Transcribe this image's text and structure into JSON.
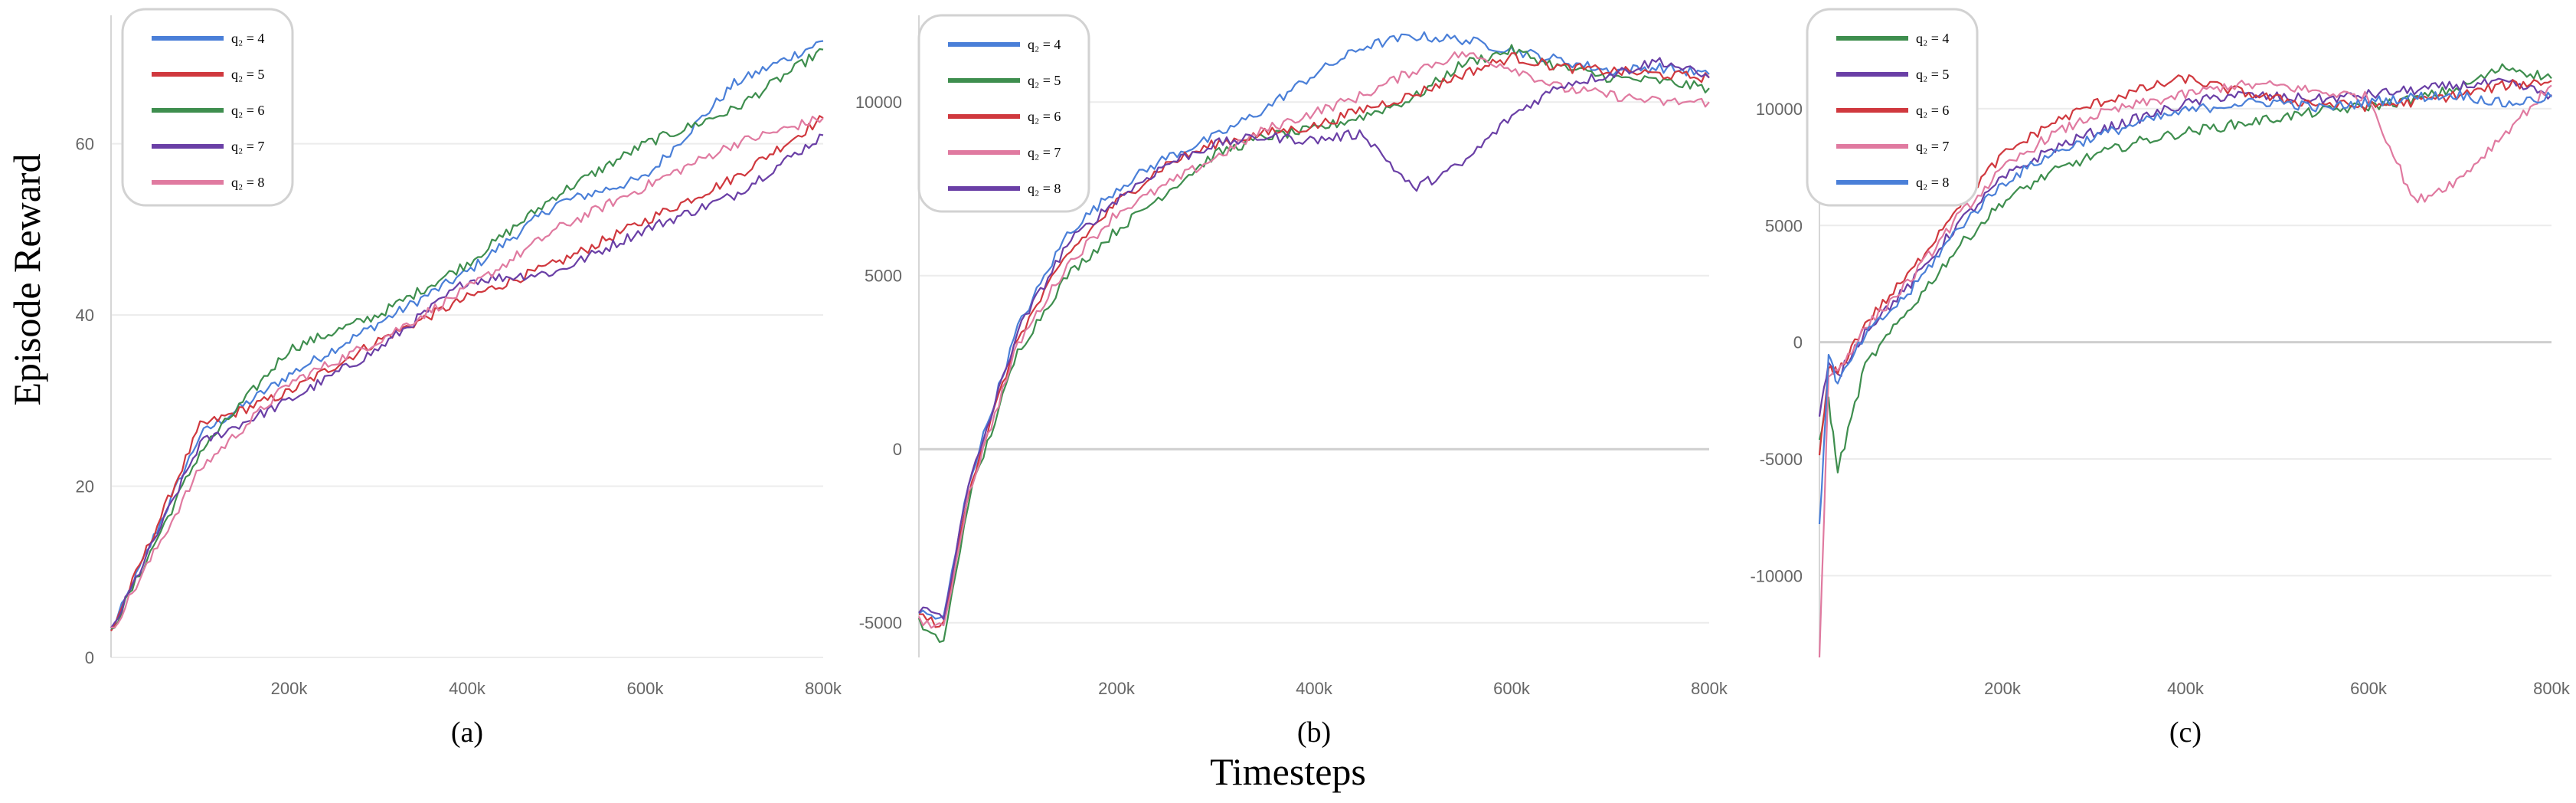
{
  "figure": {
    "ylabel": "Episode Reward",
    "xlabel": "Timesteps"
  },
  "chart_data": [
    {
      "type": "line",
      "caption": "(a)",
      "ylim": [
        0,
        75
      ],
      "xlim": [
        0,
        800000
      ],
      "yticks": [
        0,
        20,
        40,
        60
      ],
      "ytick_labels": [
        "0",
        "20",
        "40",
        "60"
      ],
      "xticks": [
        200000,
        400000,
        600000,
        800000
      ],
      "xtick_labels": [
        "200k",
        "400k",
        "600k",
        "800k"
      ],
      "grid": "horizontal",
      "legend_position": "top-left",
      "x": [
        0,
        100000,
        200000,
        300000,
        400000,
        500000,
        600000,
        700000,
        800000
      ],
      "series": [
        {
          "name": "q₂ = 4",
          "color": "#4a7fd8",
          "values": [
            3,
            26,
            33,
            39,
            45,
            53,
            56,
            67,
            72
          ]
        },
        {
          "name": "q₂ = 5",
          "color": "#d0383e",
          "values": [
            3,
            27,
            31,
            37,
            42,
            46,
            51,
            56,
            63
          ]
        },
        {
          "name": "q₂ = 6",
          "color": "#3e8e4e",
          "values": [
            3,
            24,
            36,
            40,
            46,
            54,
            60,
            64,
            71
          ]
        },
        {
          "name": "q₂ = 7",
          "color": "#6a3fa6",
          "values": [
            3,
            25,
            30,
            36,
            44,
            45,
            50,
            54,
            61
          ]
        },
        {
          "name": "q₂ = 8",
          "color": "#e07aa0",
          "values": [
            3,
            22,
            32,
            37,
            43,
            50,
            55,
            60,
            63
          ]
        }
      ]
    },
    {
      "type": "line",
      "caption": "(b)",
      "ylim": [
        -6000,
        12500
      ],
      "xlim": [
        0,
        800000
      ],
      "yticks": [
        -5000,
        0,
        5000,
        10000
      ],
      "ytick_labels": [
        "-5000",
        "0",
        "5000",
        "10000"
      ],
      "xticks": [
        200000,
        400000,
        600000,
        800000
      ],
      "xtick_labels": [
        "200k",
        "400k",
        "600k",
        "800k"
      ],
      "grid": "horizontal",
      "legend_position": "top-left",
      "x": [
        0,
        25000,
        50000,
        100000,
        150000,
        200000,
        250000,
        300000,
        350000,
        400000,
        450000,
        500000,
        550000,
        600000,
        650000,
        700000,
        750000,
        800000
      ],
      "series": [
        {
          "name": "q₂ = 4",
          "color": "#4a7fd8",
          "values": [
            -4700,
            -4900,
            -1000,
            3500,
            6200,
            7500,
            8400,
            9000,
            9800,
            10800,
            11600,
            11900,
            11800,
            11500,
            11200,
            10900,
            11000,
            10800
          ]
        },
        {
          "name": "q₂ = 5",
          "color": "#3e8e4e",
          "values": [
            -5000,
            -5600,
            -1500,
            2800,
            5000,
            6300,
            7400,
            8500,
            9000,
            9200,
            9600,
            10100,
            11100,
            11500,
            11000,
            10700,
            10600,
            10400
          ]
        },
        {
          "name": "q₂ = 6",
          "color": "#d0383e",
          "values": [
            -4800,
            -5100,
            -1200,
            3200,
            5600,
            7100,
            8200,
            8800,
            9100,
            9300,
            9800,
            10200,
            10800,
            11300,
            11000,
            10900,
            10800,
            10700
          ]
        },
        {
          "name": "q₂ = 7",
          "color": "#e07aa0",
          "values": [
            -4900,
            -5200,
            -1300,
            3000,
            5300,
            6800,
            7600,
            8400,
            9200,
            9700,
            10200,
            10900,
            11400,
            11000,
            10400,
            10200,
            10000,
            10000
          ]
        },
        {
          "name": "q₂ = 8",
          "color": "#6a3fa6",
          "values": [
            -4600,
            -4800,
            -1100,
            3400,
            5900,
            7200,
            8200,
            8800,
            9000,
            8900,
            9100,
            7500,
            8200,
            9600,
            10500,
            10800,
            11200,
            10700
          ]
        }
      ]
    },
    {
      "type": "line",
      "caption": "(c)",
      "ylim": [
        -13500,
        14000
      ],
      "xlim": [
        0,
        800000
      ],
      "yticks": [
        -10000,
        -5000,
        0,
        5000,
        10000
      ],
      "ytick_labels": [
        "-10000",
        "-5000",
        "0",
        "5000",
        "10000"
      ],
      "xticks": [
        200000,
        400000,
        600000,
        800000
      ],
      "xtick_labels": [
        "200k",
        "400k",
        "600k",
        "800k"
      ],
      "grid": "horizontal",
      "legend_position": "top-left",
      "x": [
        0,
        10000,
        20000,
        50000,
        100000,
        150000,
        200000,
        250000,
        300000,
        350000,
        400000,
        450000,
        500000,
        550000,
        600000,
        650000,
        700000,
        750000,
        800000
      ],
      "series": [
        {
          "name": "q₂ = 4",
          "color": "#3e8e4e",
          "values": [
            -4000,
            -2500,
            -5500,
            -1000,
            1500,
            4000,
            6000,
            7200,
            8000,
            8600,
            9000,
            9300,
            9600,
            9900,
            10100,
            10400,
            10900,
            11800,
            11300
          ]
        },
        {
          "name": "q₂ = 5",
          "color": "#6a3fa6",
          "values": [
            -3000,
            -1000,
            -1500,
            500,
            2500,
            5000,
            7000,
            8200,
            9000,
            9600,
            10200,
            10600,
            10500,
            10400,
            10600,
            10800,
            11000,
            11100,
            10600
          ]
        },
        {
          "name": "q₂ = 6",
          "color": "#d0383e",
          "values": [
            -5000,
            -1200,
            -1300,
            800,
            3000,
            5800,
            8000,
            9300,
            10200,
            10800,
            11300,
            10800,
            10400,
            10200,
            10100,
            10300,
            10600,
            11000,
            11200
          ]
        },
        {
          "name": "q₂ = 7",
          "color": "#e07aa0",
          "values": [
            -13500,
            -1400,
            -1200,
            600,
            2700,
            5300,
            7400,
            8800,
            9700,
            10200,
            10600,
            11000,
            11000,
            10700,
            10500,
            6000,
            7000,
            9000,
            11000
          ]
        },
        {
          "name": "q₂ = 8",
          "color": "#4a7fd8",
          "values": [
            -8000,
            -500,
            -1800,
            300,
            2200,
            4800,
            6800,
            8000,
            8800,
            9400,
            9900,
            10200,
            10300,
            10000,
            10300,
            10500,
            10600,
            10200,
            10500
          ]
        }
      ]
    }
  ]
}
